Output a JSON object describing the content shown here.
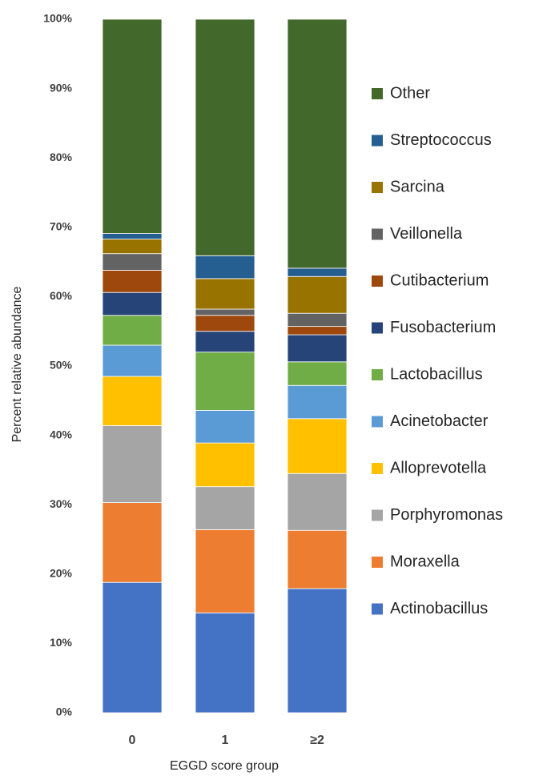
{
  "chart_data": {
    "type": "stacked_bar",
    "x_label": "EGGD score group",
    "y_label": "Percent relative abundance",
    "categories": [
      "0",
      "1",
      "≥2"
    ],
    "ylim": [
      0,
      100
    ],
    "yticks": [
      {
        "value": 0,
        "label": "0%"
      },
      {
        "value": 10,
        "label": "10%"
      },
      {
        "value": 20,
        "label": "20%"
      },
      {
        "value": 30,
        "label": "30%"
      },
      {
        "value": 40,
        "label": "40%"
      },
      {
        "value": 50,
        "label": "50%"
      },
      {
        "value": 60,
        "label": "60%"
      },
      {
        "value": 70,
        "label": "70%"
      },
      {
        "value": 80,
        "label": "80%"
      },
      {
        "value": 90,
        "label": "90%"
      },
      {
        "value": 100,
        "label": "100%"
      }
    ],
    "legend": "right",
    "series": [
      {
        "name": "Actinobacillus",
        "color": "#4472c4",
        "values": [
          18.8,
          14.4,
          17.9
        ]
      },
      {
        "name": "Moraxella",
        "color": "#ed7d31",
        "values": [
          11.5,
          12.0,
          8.4
        ]
      },
      {
        "name": "Porphyromonas",
        "color": "#a5a5a5",
        "values": [
          11.1,
          6.2,
          8.2
        ]
      },
      {
        "name": "Alloprevotella",
        "color": "#ffc000",
        "values": [
          7.1,
          6.3,
          7.9
        ]
      },
      {
        "name": "Acinetobacter",
        "color": "#5b9bd5",
        "values": [
          4.5,
          4.7,
          4.8
        ]
      },
      {
        "name": "Lactobacillus",
        "color": "#70ad47",
        "values": [
          4.3,
          8.4,
          3.4
        ]
      },
      {
        "name": "Fusobacterium",
        "color": "#264478",
        "values": [
          3.3,
          3.0,
          3.9
        ]
      },
      {
        "name": "Cutibacterium",
        "color": "#9e480e",
        "values": [
          3.2,
          2.3,
          1.2
        ]
      },
      {
        "name": "Veillonella",
        "color": "#636363",
        "values": [
          2.4,
          0.9,
          1.9
        ]
      },
      {
        "name": "Sarcina",
        "color": "#997300",
        "values": [
          2.1,
          4.4,
          5.3
        ]
      },
      {
        "name": "Streptococcus",
        "color": "#255e91",
        "values": [
          0.8,
          3.3,
          1.2
        ]
      },
      {
        "name": "Other",
        "color": "#43682b",
        "values": [
          30.9,
          34.1,
          35.9
        ]
      }
    ]
  }
}
